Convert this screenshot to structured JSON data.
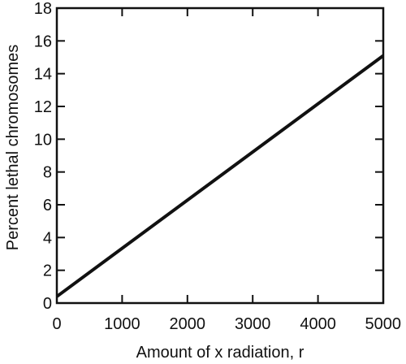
{
  "chart_data": {
    "type": "line",
    "title": "",
    "xlabel": "Amount of x radiation, r",
    "ylabel": "Percent lethal chromosomes",
    "xlim": [
      0,
      5000
    ],
    "ylim": [
      0,
      18
    ],
    "x_ticks": [
      0,
      1000,
      2000,
      3000,
      4000,
      5000
    ],
    "y_ticks": [
      0,
      2,
      4,
      6,
      8,
      10,
      12,
      14,
      16,
      18
    ],
    "grid": false,
    "legend": "none",
    "series": [
      {
        "x": [
          0,
          5000
        ],
        "values": [
          0.4,
          15.1
        ]
      }
    ],
    "colors": {
      "line": "#111111",
      "axes": "#111111"
    }
  }
}
